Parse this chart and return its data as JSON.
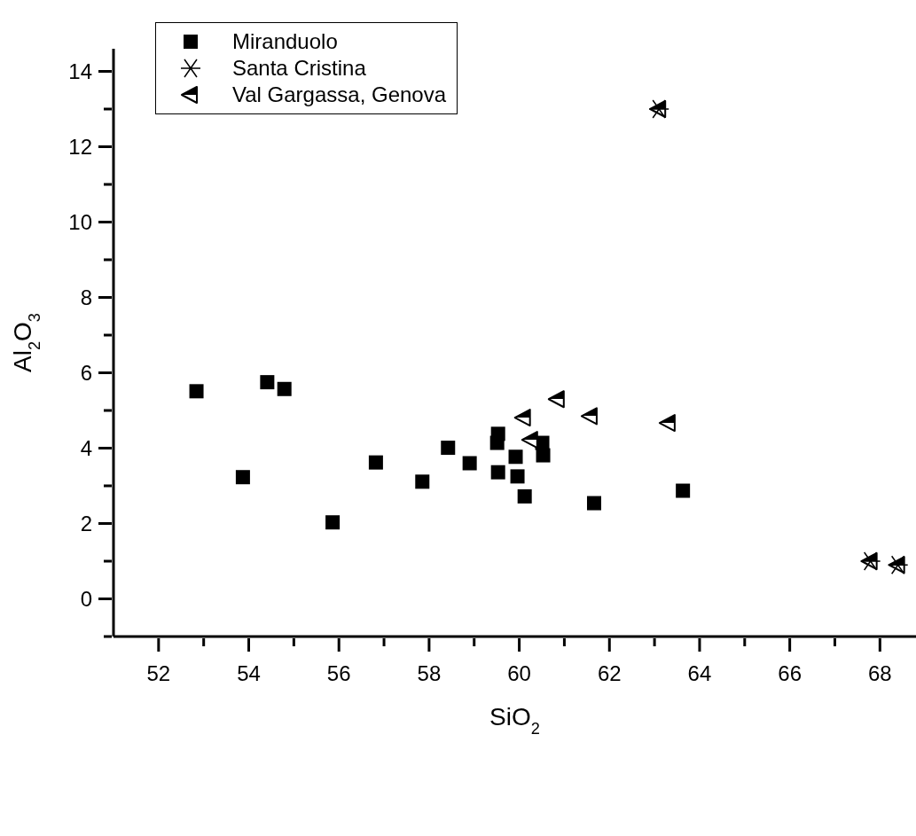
{
  "chart_data": {
    "type": "scatter",
    "xlabel": "SiO$_{2}$",
    "ylabel": "Al$_{2}$O$_{3}$",
    "xlim": [
      51,
      68.8
    ],
    "ylim": [
      -1,
      14.6
    ],
    "xticks": [
      52,
      {
        "value": 53,
        "label": null
      },
      54,
      {
        "value": 55,
        "label": null
      },
      56,
      {
        "value": 57,
        "label": null
      },
      58,
      {
        "value": 59,
        "label": null
      },
      60,
      {
        "value": 61,
        "label": null
      },
      62,
      {
        "value": 63,
        "label": null
      },
      64,
      {
        "value": 65,
        "label": null
      },
      66,
      {
        "value": 67,
        "label": null
      },
      68
    ],
    "yticks": [
      {
        "value": -1,
        "label": null
      },
      0,
      {
        "value": 1,
        "label": null
      },
      2,
      {
        "value": 3,
        "label": null
      },
      4,
      {
        "value": 5,
        "label": null
      },
      6,
      {
        "value": 7,
        "label": null
      },
      8,
      {
        "value": 9,
        "label": null
      },
      10,
      {
        "value": 11,
        "label": null
      },
      12,
      {
        "value": 13,
        "label": null
      },
      14
    ],
    "grid": false,
    "legend": "top left",
    "series": [
      {
        "name": "Miranduolo",
        "color": "#000000",
        "marker": "square",
        "x": [
          52.84,
          54.41,
          54.79,
          53.87,
          55.86,
          56.82,
          57.85,
          58.42,
          58.9,
          59.53,
          59.51,
          59.53,
          59.92,
          59.96,
          60.12,
          60.51,
          60.53,
          61.66,
          63.63
        ],
        "values": [
          5.51,
          5.75,
          5.57,
          3.23,
          2.03,
          3.62,
          3.11,
          4.01,
          3.6,
          4.38,
          4.14,
          3.36,
          3.77,
          3.25,
          2.72,
          4.14,
          3.81,
          2.54,
          2.87
        ]
      },
      {
        "name": "Santa Cristina",
        "color": "#000000",
        "marker": "cross",
        "x": [
          63.1,
          67.79,
          68.4
        ],
        "values": [
          13.0,
          1.0,
          0.9
        ]
      },
      {
        "name": "Val Gargassa, Genova",
        "color": "#000000",
        "marker": "triangle",
        "x": [
          60.1,
          60.85,
          61.58,
          63.31,
          60.26,
          63.1,
          67.79,
          68.4
        ],
        "values": [
          4.81,
          5.3,
          4.85,
          4.67,
          4.22,
          13.0,
          1.0,
          0.9
        ]
      }
    ]
  }
}
